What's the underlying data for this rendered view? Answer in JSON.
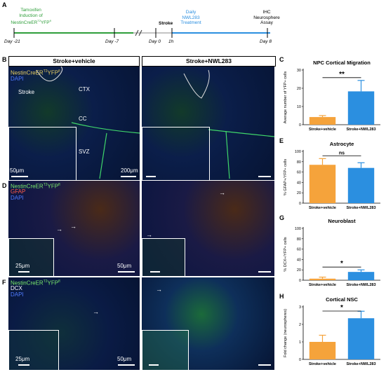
{
  "panels": {
    "A": "A",
    "B": "B",
    "C": "C",
    "D": "D",
    "E": "E",
    "F": "F",
    "G": "G",
    "H": "H"
  },
  "timeline": {
    "label_tamoxifen_1": "Tamoxifen",
    "label_tamoxifen_2": "Induction of",
    "label_tamoxifen_3": "NestinCreER",
    "label_tamoxifen_3_sup": "T2",
    "label_tamoxifen_3_b": "YFP",
    "label_tamoxifen_3_sup2": "fl",
    "stroke": "Stroke",
    "daily_1": "Daily",
    "daily_2": "NWL283",
    "daily_3": "Treatment",
    "ihc_1": "IHC",
    "ihc_2": "Neurosphere",
    "ihc_3": "Assay",
    "day_m21": "Day -21",
    "day_m7": "Day -7",
    "day_0": "Day 0",
    "h1": "1h",
    "day_8": "Day 8",
    "colors": {
      "green": "#2e9e3a",
      "blue": "#2b8fe0"
    }
  },
  "headers": {
    "vehicle": "Stroke+vehicle",
    "nwl": "Stroke+NWL283"
  },
  "panelB": {
    "stain1": "NestinCreER",
    "stain1_sup": "T2",
    "stain1_b": "YFP",
    "stain1_sup2": "fl",
    "stain2": "DAPI",
    "stroke": "Stroke",
    "ctx": "CTX",
    "cc": "CC",
    "svz": "SVZ",
    "scale_inset": "50μm",
    "scale_main": "200μm"
  },
  "panelD": {
    "stain1": "NestinCreER",
    "stain1_sup": "T2",
    "stain1_b": "YFP",
    "stain1_sup2": "fl",
    "stain2": "GFAP",
    "stain3": "DAPI",
    "scale_inset": "25μm",
    "scale_main": "50μm"
  },
  "panelF": {
    "stain1": "NestinCreER",
    "stain1_sup": "T2",
    "stain1_b": "YFP",
    "stain1_sup2": "fl",
    "stain2": "DCX",
    "stain3": "DAPI",
    "scale_inset": "25μm",
    "scale_main": "50μm"
  },
  "chart_data": [
    {
      "panel": "C",
      "type": "bar",
      "title": "NPC Cortical Migration",
      "ylabel": "Average number of YFP+ cells",
      "categories": [
        "Stroke+vehicle",
        "Stroke+NWL283"
      ],
      "values": [
        4.2,
        18.3
      ],
      "errors": [
        0.8,
        6.0
      ],
      "ylim": [
        0,
        30
      ],
      "yticks": [
        0,
        10,
        20,
        30
      ],
      "significance": "**",
      "colors": [
        "#f5a33b",
        "#2b8fe0"
      ]
    },
    {
      "panel": "E",
      "type": "bar",
      "title": "Astrocyte",
      "ylabel": "% GFAP+/YFP+ cells",
      "categories": [
        "Stroke+vehicle",
        "Stroke+NWL283"
      ],
      "values": [
        74,
        68
      ],
      "errors": [
        12,
        10
      ],
      "ylim": [
        0,
        100
      ],
      "yticks": [
        0,
        20,
        40,
        60,
        80,
        100
      ],
      "significance": "ns",
      "colors": [
        "#f5a33b",
        "#2b8fe0"
      ]
    },
    {
      "panel": "G",
      "type": "bar",
      "title": "Neuroblast",
      "ylabel": "% DCX+/YFP+ cells",
      "categories": [
        "Stroke+vehicle",
        "Stroke+NWL283"
      ],
      "values": [
        3,
        16
      ],
      "errors": [
        3,
        4
      ],
      "ylim": [
        0,
        100
      ],
      "yticks": [
        0,
        20,
        40,
        60,
        80,
        100
      ],
      "significance": "*",
      "colors": [
        "#f5a33b",
        "#2b8fe0"
      ]
    },
    {
      "panel": "H",
      "type": "bar",
      "title": "Cortical NSC",
      "ylabel": "Fold change (neurospheres)",
      "categories": [
        "Stroke+vehicle",
        "Stroke+NWL283"
      ],
      "values": [
        1.0,
        2.35
      ],
      "errors": [
        0.38,
        0.4
      ],
      "ylim": [
        0,
        3
      ],
      "yticks": [
        0,
        1,
        2,
        3
      ],
      "significance": "*",
      "colors": [
        "#f5a33b",
        "#2b8fe0"
      ]
    }
  ]
}
